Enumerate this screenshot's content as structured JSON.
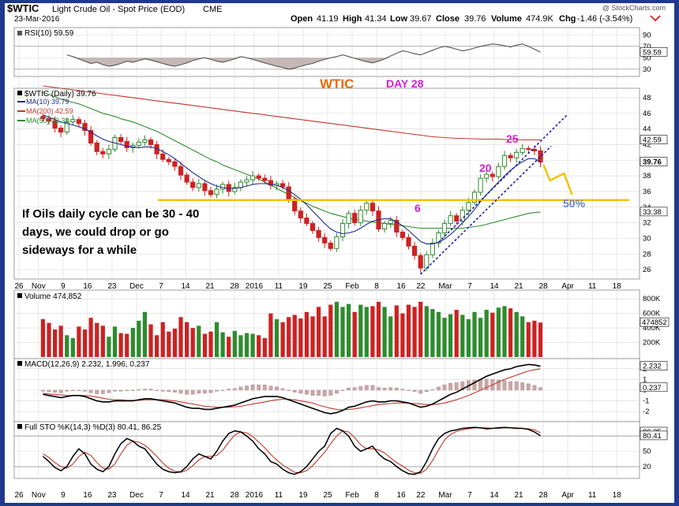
{
  "header": {
    "symbol": "$WTIC",
    "name": "Light Crude Oil - Spot Price (EOD)",
    "exchange": "CME",
    "date": "23-Mar-2016",
    "open_label": "Open",
    "open": "41.19",
    "high_label": "High",
    "high": "41.34",
    "low_label": "Low",
    "low": "39.67",
    "close_label": "Close",
    "close": "39.76",
    "volume_label": "Volume",
    "volume": "474.9K",
    "chg_label": "Chg",
    "chg": "-1.46 (-3.54%)",
    "watermark": "@ StockCharts.com"
  },
  "colors": {
    "frame": "#1f3a8a",
    "up": "#2e8b2e",
    "down": "#cc2222",
    "ma10": "#1c2a8c",
    "ma200": "#c0392b",
    "ma50": "#2e8b2e",
    "trendline": "#1f1fb0",
    "support": "#f2c200",
    "projection": "#f2c200",
    "orange": "#ee6a00",
    "magenta": "#d61fd6",
    "rsi": "#555555",
    "grid": "#d8d8d8",
    "volume_up": "#2e8b2e",
    "volume_down": "#cc2222",
    "histogram": "#c9a7a7"
  },
  "chart_data": [
    {
      "type": "line",
      "panel": "rsi",
      "legend": "RSI(10) 59.59",
      "yticks": [
        30,
        50,
        70,
        90
      ],
      "last_value": 59.59,
      "ylim": [
        20,
        100
      ],
      "series": [
        {
          "values": [
            55,
            52,
            48,
            44,
            40,
            42,
            38,
            35,
            37,
            40,
            44,
            42,
            45,
            48,
            46,
            43,
            40,
            37,
            35,
            38,
            41,
            45,
            48,
            50,
            47,
            44,
            42,
            45,
            48,
            52,
            50,
            47,
            44,
            41,
            38,
            35,
            33,
            30,
            32,
            35,
            38,
            40,
            44,
            47,
            50,
            52,
            55,
            52,
            49,
            46,
            43,
            41,
            44,
            48,
            53,
            58,
            62,
            60,
            57,
            55,
            59,
            63,
            67,
            70,
            68,
            65,
            62,
            64,
            67,
            70,
            72,
            74,
            73,
            71,
            69,
            72,
            74,
            70,
            65,
            59.59
          ]
        }
      ]
    },
    {
      "type": "line",
      "panel": "price",
      "legend": "$WTIC (Daily) 39.76",
      "ma_legends": [
        "MA(10) 39.79",
        "MA(200) 42.59",
        "MA(50) 33.38"
      ],
      "annotations": [
        "WTIC",
        "DAY 28",
        "25",
        "20",
        "6",
        "50%",
        "If Oils daily cycle can be 30 - 40",
        "days,   we could drop or go",
        "sideways for a while"
      ],
      "yticks": [
        26,
        28,
        30,
        32,
        34,
        36,
        38,
        40,
        42,
        44,
        46,
        48
      ],
      "right_labels": [
        "42.59",
        "39.76",
        "33.38"
      ],
      "ylim": [
        25,
        49
      ],
      "close": [
        45.3,
        45.0,
        44.1,
        43.6,
        44.9,
        45.2,
        44.7,
        43.8,
        42.2,
        41.1,
        40.8,
        41.4,
        42.9,
        42.4,
        41.6,
        41.9,
        42.3,
        42.6,
        42.0,
        40.8,
        40.1,
        39.8,
        39.2,
        38.1,
        37.2,
        36.5,
        37.0,
        36.1,
        35.6,
        36.3,
        36.9,
        36.0,
        36.5,
        37.2,
        37.5,
        38.0,
        37.7,
        37.4,
        36.8,
        37.0,
        36.6,
        35.0,
        33.5,
        32.6,
        31.9,
        31.0,
        30.1,
        29.4,
        28.7,
        30.2,
        31.9,
        33.2,
        32.0,
        33.6,
        34.5,
        33.5,
        31.2,
        31.9,
        32.3,
        30.8,
        30.1,
        29.0,
        27.8,
        26.2,
        27.9,
        29.4,
        30.7,
        31.9,
        32.9,
        32.2,
        33.6,
        34.6,
        35.9,
        37.7,
        38.2,
        37.9,
        39.2,
        40.6,
        40.3,
        41.0,
        41.5,
        41.4,
        41.2,
        39.76
      ],
      "ma10": [
        45.8,
        45.5,
        45.2,
        44.9,
        44.7,
        44.5,
        44.3,
        44.0,
        43.6,
        43.1,
        42.7,
        42.4,
        42.2,
        42.0,
        41.8,
        41.7,
        41.6,
        41.7,
        41.7,
        41.5,
        41.1,
        40.7,
        40.2,
        39.6,
        39.0,
        38.4,
        37.9,
        37.4,
        37.0,
        36.7,
        36.5,
        36.4,
        36.4,
        36.5,
        36.7,
        36.9,
        37.0,
        37.0,
        36.9,
        36.8,
        36.5,
        36.1,
        35.6,
        35.0,
        34.3,
        33.5,
        32.7,
        31.9,
        31.2,
        30.8,
        30.6,
        30.7,
        30.9,
        31.3,
        31.8,
        32.2,
        32.4,
        32.5,
        32.5,
        32.1,
        31.6,
        31.0,
        30.3,
        29.6,
        29.3,
        29.3,
        29.5,
        29.9,
        30.5,
        31.2,
        32.0,
        32.8,
        33.7,
        34.7,
        35.6,
        36.4,
        37.2,
        38.0,
        38.7,
        39.3,
        39.8,
        40.2,
        40.2,
        39.79
      ],
      "ma50": [
        48.7,
        48.4,
        48.1,
        47.8,
        47.6,
        47.4,
        47.2,
        46.9,
        46.6,
        46.3,
        46.0,
        45.8,
        45.6,
        45.3,
        45.1,
        44.9,
        44.6,
        44.3,
        44.0,
        43.7,
        43.3,
        42.9,
        42.5,
        42.1,
        41.7,
        41.3,
        40.9,
        40.5,
        40.1,
        39.8,
        39.4,
        39.1,
        38.8,
        38.5,
        38.2,
        37.9,
        37.6,
        37.2,
        36.8,
        36.4,
        36.0,
        35.6,
        35.2,
        34.8,
        34.5,
        34.1,
        33.8,
        33.5,
        33.2,
        33.0,
        32.8,
        32.6,
        32.4,
        32.3,
        32.2,
        32.1,
        32.0,
        31.9,
        31.8,
        31.7,
        31.6,
        31.5,
        31.4,
        31.3,
        31.3,
        31.3,
        31.3,
        31.3,
        31.3,
        31.3,
        31.3,
        31.4,
        31.5,
        31.6,
        31.8,
        32.0,
        32.2,
        32.4,
        32.6,
        32.8,
        33.0,
        33.2,
        33.3,
        33.38
      ],
      "ma200": [
        49.5,
        49.4,
        49.3,
        49.2,
        49.1,
        49.0,
        48.9,
        48.8,
        48.7,
        48.6,
        48.5,
        48.4,
        48.3,
        48.2,
        48.1,
        48.0,
        47.9,
        47.8,
        47.7,
        47.6,
        47.5,
        47.4,
        47.3,
        47.2,
        47.1,
        47.0,
        46.9,
        46.8,
        46.7,
        46.6,
        46.5,
        46.4,
        46.3,
        46.2,
        46.1,
        46.0,
        45.9,
        45.8,
        45.7,
        45.6,
        45.5,
        45.4,
        45.3,
        45.2,
        45.1,
        45.0,
        44.9,
        44.8,
        44.7,
        44.6,
        44.5,
        44.4,
        44.3,
        44.2,
        44.1,
        44.0,
        43.9,
        43.8,
        43.7,
        43.6,
        43.5,
        43.4,
        43.3,
        43.2,
        43.1,
        43.0,
        42.95,
        42.9,
        42.85,
        42.8,
        42.8,
        42.75,
        42.75,
        42.7,
        42.7,
        42.7,
        42.7,
        42.65,
        42.65,
        42.65,
        42.6,
        42.6,
        42.6,
        42.59
      ]
    },
    {
      "type": "bar",
      "panel": "volume",
      "legend": "Volume 474,852",
      "yticks": [
        "800K",
        "600K",
        "400K",
        "200K"
      ],
      "last_label": "474852",
      "ylim": [
        0,
        900000
      ],
      "values": [
        520000,
        470000,
        380000,
        430000,
        300000,
        260000,
        420000,
        380000,
        540000,
        470000,
        430000,
        280000,
        420000,
        330000,
        320000,
        400000,
        500000,
        620000,
        450000,
        300000,
        480000,
        350000,
        390000,
        550000,
        480000,
        400000,
        430000,
        320000,
        350000,
        480000,
        340000,
        280000,
        360000,
        300000,
        330000,
        320000,
        300000,
        260000,
        600000,
        520000,
        480000,
        550000,
        580000,
        530000,
        620000,
        560000,
        690000,
        560000,
        720000,
        760000,
        690000,
        730000,
        620000,
        720000,
        690000,
        700000,
        760000,
        690000,
        560000,
        710000,
        600000,
        720000,
        690000,
        760000,
        700000,
        660000,
        620000,
        540000,
        590000,
        650000,
        580000,
        520000,
        620000,
        540000,
        650000,
        610000,
        680000,
        700000,
        670000,
        620000,
        560000,
        480000,
        500000,
        474852
      ]
    },
    {
      "type": "line",
      "panel": "macd",
      "legend": "MACD(12,26,9) 2.232, 1.996, 0.237",
      "yticks": [
        2,
        1,
        0,
        -1,
        -2
      ],
      "right_labels": [
        "2.232",
        "0.237"
      ],
      "ylim": [
        -2.8,
        2.8
      ],
      "series": [
        {
          "name": "MACD",
          "values": [
            -0.4,
            -0.5,
            -0.6,
            -0.7,
            -0.6,
            -0.5,
            -0.5,
            -0.6,
            -0.8,
            -1.0,
            -1.1,
            -1.1,
            -1.0,
            -1.0,
            -1.0,
            -1.0,
            -0.9,
            -0.8,
            -0.8,
            -0.9,
            -1.0,
            -1.1,
            -1.2,
            -1.4,
            -1.6,
            -1.7,
            -1.7,
            -1.8,
            -1.8,
            -1.7,
            -1.6,
            -1.5,
            -1.4,
            -1.2,
            -1.0,
            -0.8,
            -0.7,
            -0.6,
            -0.6,
            -0.6,
            -0.7,
            -0.9,
            -1.1,
            -1.3,
            -1.5,
            -1.7,
            -1.9,
            -2.1,
            -2.2,
            -2.1,
            -1.9,
            -1.6,
            -1.5,
            -1.3,
            -1.1,
            -1.0,
            -1.1,
            -1.1,
            -1.0,
            -1.0,
            -1.1,
            -1.2,
            -1.4,
            -1.6,
            -1.5,
            -1.3,
            -1.0,
            -0.7,
            -0.4,
            -0.2,
            0.1,
            0.4,
            0.7,
            1.0,
            1.3,
            1.5,
            1.7,
            1.9,
            2.0,
            2.2,
            2.3,
            2.4,
            2.35,
            2.232
          ]
        },
        {
          "name": "Signal",
          "values": [
            -0.3,
            -0.35,
            -0.4,
            -0.45,
            -0.5,
            -0.5,
            -0.5,
            -0.5,
            -0.55,
            -0.65,
            -0.75,
            -0.85,
            -0.9,
            -0.9,
            -0.95,
            -0.95,
            -0.95,
            -0.9,
            -0.9,
            -0.9,
            -0.9,
            -0.95,
            -1.0,
            -1.1,
            -1.2,
            -1.3,
            -1.4,
            -1.5,
            -1.55,
            -1.6,
            -1.6,
            -1.6,
            -1.55,
            -1.5,
            -1.4,
            -1.3,
            -1.2,
            -1.1,
            -1.0,
            -0.9,
            -0.85,
            -0.85,
            -0.9,
            -1.0,
            -1.1,
            -1.2,
            -1.4,
            -1.55,
            -1.7,
            -1.8,
            -1.85,
            -1.8,
            -1.75,
            -1.65,
            -1.55,
            -1.45,
            -1.35,
            -1.3,
            -1.25,
            -1.2,
            -1.2,
            -1.2,
            -1.25,
            -1.3,
            -1.35,
            -1.35,
            -1.3,
            -1.2,
            -1.05,
            -0.9,
            -0.7,
            -0.5,
            -0.25,
            0.0,
            0.25,
            0.5,
            0.75,
            1.0,
            1.2,
            1.4,
            1.6,
            1.8,
            1.9,
            1.996
          ]
        },
        {
          "name": "Histogram",
          "values": [
            -0.1,
            -0.15,
            -0.2,
            -0.25,
            -0.1,
            0.0,
            0.0,
            -0.1,
            -0.25,
            -0.35,
            -0.35,
            -0.25,
            -0.1,
            -0.1,
            -0.05,
            -0.05,
            0.05,
            0.1,
            0.1,
            0.0,
            -0.1,
            -0.15,
            -0.2,
            -0.3,
            -0.4,
            -0.4,
            -0.3,
            -0.3,
            -0.25,
            -0.1,
            0.0,
            0.1,
            0.15,
            0.3,
            0.4,
            0.5,
            0.5,
            0.5,
            0.4,
            0.3,
            0.15,
            -0.05,
            -0.2,
            -0.3,
            -0.4,
            -0.5,
            -0.5,
            -0.55,
            -0.5,
            -0.3,
            -0.05,
            0.2,
            0.25,
            0.35,
            0.45,
            0.45,
            0.25,
            0.2,
            0.25,
            0.2,
            0.1,
            0.0,
            -0.15,
            -0.3,
            -0.15,
            0.05,
            0.3,
            0.5,
            0.65,
            0.7,
            0.8,
            0.9,
            0.95,
            1.0,
            1.05,
            1.0,
            0.95,
            0.9,
            0.8,
            0.8,
            0.7,
            0.6,
            0.45,
            0.237
          ]
        }
      ]
    },
    {
      "type": "line",
      "panel": "stochastic",
      "legend": "Full STO %K(14,3) %D(3) 80.41, 86.25",
      "yticks": [
        20,
        50,
        80
      ],
      "right_labels": [
        "86.25",
        "80.41"
      ],
      "ylim": [
        0,
        105
      ],
      "series": [
        {
          "name": "%K",
          "values": [
            40,
            30,
            18,
            12,
            20,
            40,
            55,
            45,
            25,
            15,
            10,
            20,
            45,
            65,
            75,
            70,
            60,
            55,
            40,
            25,
            15,
            10,
            8,
            10,
            20,
            35,
            45,
            40,
            35,
            50,
            70,
            85,
            90,
            88,
            80,
            70,
            55,
            45,
            30,
            25,
            15,
            8,
            5,
            10,
            20,
            35,
            50,
            60,
            85,
            95,
            90,
            80,
            60,
            50,
            55,
            60,
            45,
            35,
            30,
            20,
            12,
            6,
            5,
            10,
            30,
            55,
            75,
            85,
            90,
            92,
            95,
            96,
            97,
            96,
            94,
            95,
            96,
            97,
            96,
            95,
            95,
            93,
            88,
            80.41
          ]
        },
        {
          "name": "%D",
          "values": [
            45,
            38,
            28,
            20,
            17,
            25,
            40,
            48,
            42,
            28,
            17,
            15,
            25,
            45,
            62,
            70,
            68,
            62,
            52,
            40,
            27,
            17,
            11,
            9,
            13,
            22,
            33,
            40,
            40,
            42,
            52,
            68,
            82,
            88,
            86,
            79,
            68,
            57,
            44,
            33,
            23,
            16,
            9,
            8,
            12,
            22,
            35,
            48,
            65,
            80,
            90,
            88,
            77,
            63,
            55,
            55,
            53,
            47,
            37,
            28,
            21,
            13,
            8,
            7,
            15,
            32,
            53,
            72,
            83,
            89,
            92,
            94,
            96,
            96,
            96,
            95,
            95,
            96,
            96,
            96,
            95,
            94,
            92,
            86.25
          ]
        }
      ]
    }
  ],
  "x_axis": {
    "labels": [
      "26",
      "Nov",
      "9",
      "16",
      "23",
      "Dec",
      "7",
      "14",
      "21",
      "28",
      "2016",
      "11",
      "19",
      "25",
      "Feb",
      "8",
      "16",
      "22",
      "Mar",
      "7",
      "14",
      "21",
      "28",
      "Apr",
      "11",
      "18"
    ]
  }
}
